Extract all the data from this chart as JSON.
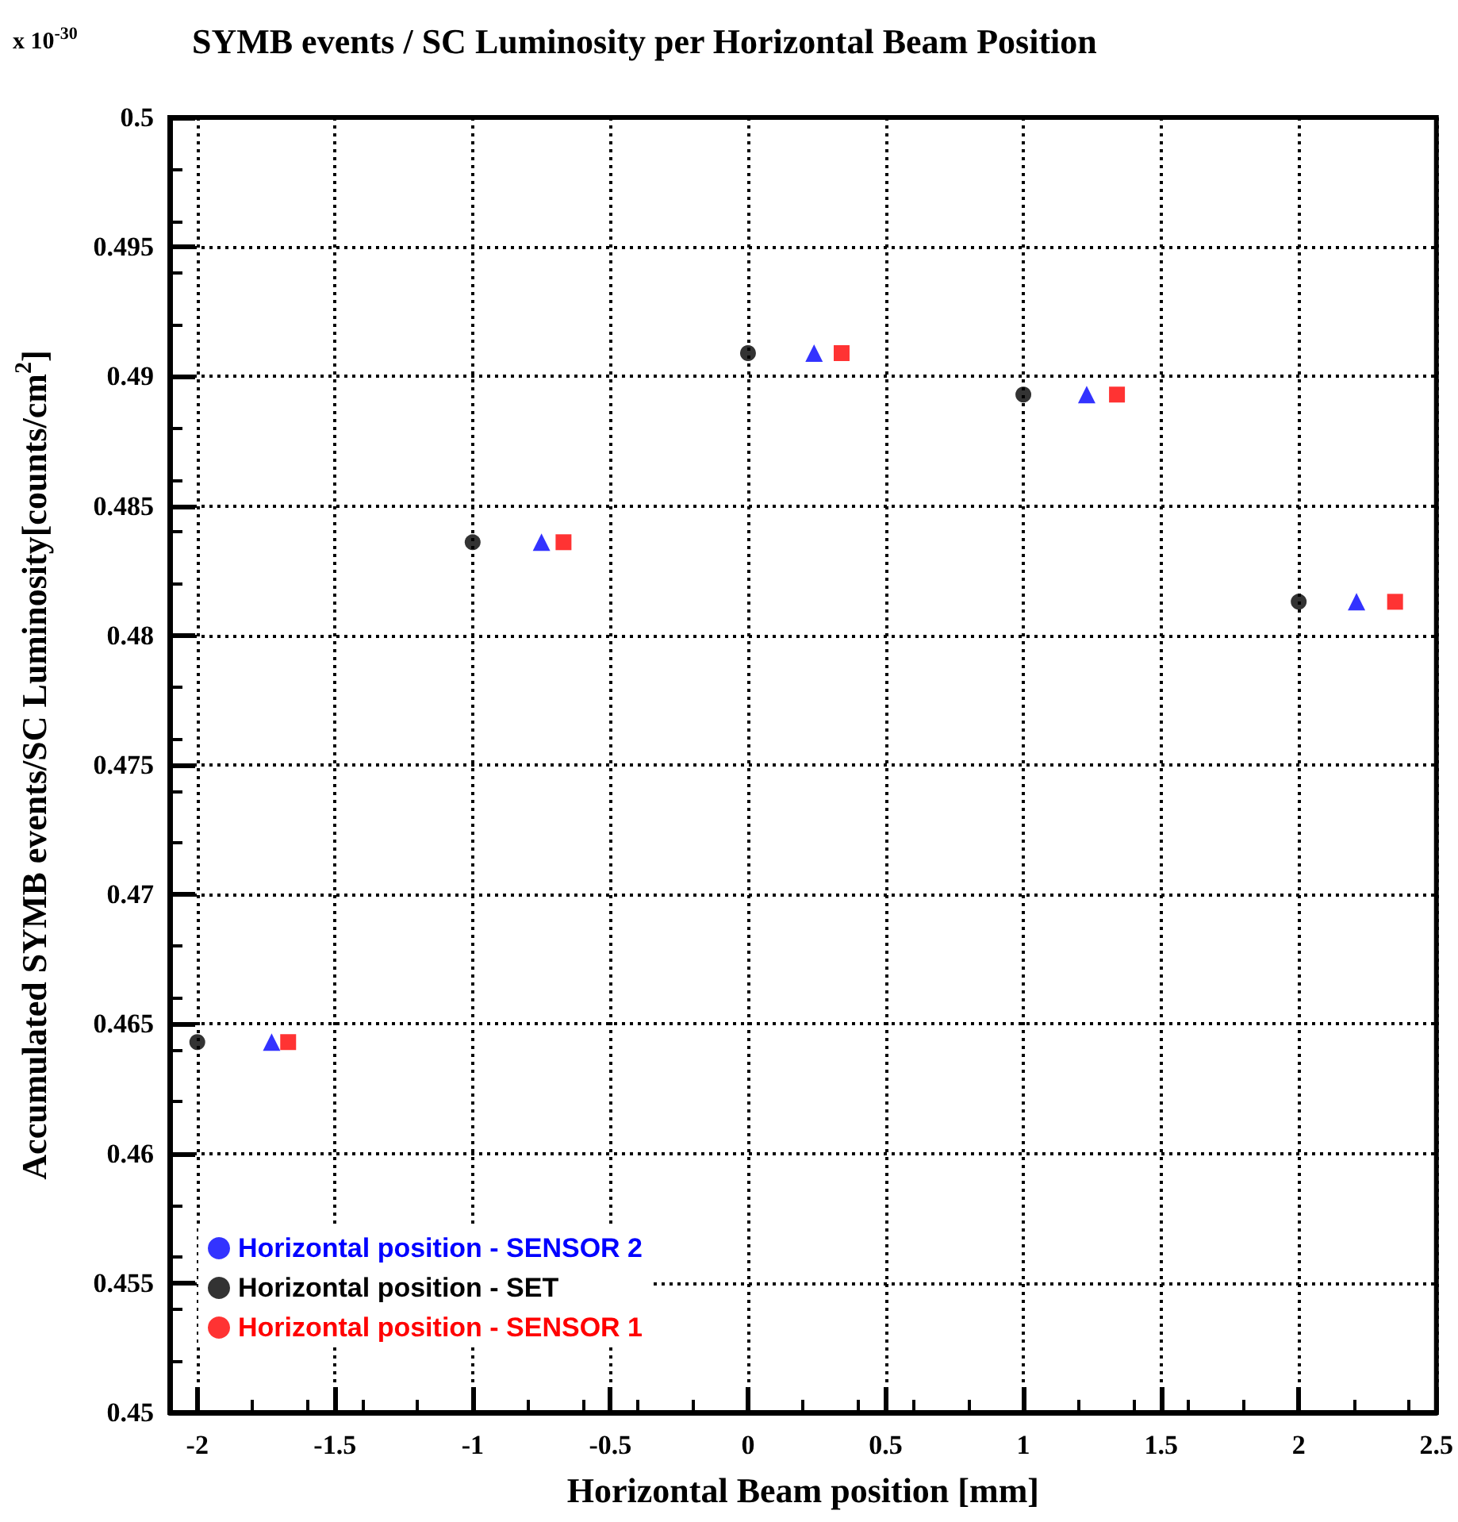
{
  "chart_data": {
    "type": "scatter",
    "title": "SYMB events / SC Luminosity per Horizontal Beam Position",
    "annotations": [
      "x 10$^{-30}$"
    ],
    "xlabel": "Horizontal Beam position [mm]",
    "ylabel": "Accumulated SYMB events/SC Luminosity[counts/cm$^{2}$]",
    "series": [
      {
        "name": "Horizontal position - SENSOR 2",
        "color": "#0000ff",
        "marker": "triangle",
        "x": [
          -1.73,
          -0.75,
          0.24,
          1.23,
          2.21
        ],
        "values": [
          0.4643,
          0.4836,
          0.4909,
          0.4893,
          0.4813
        ]
      },
      {
        "name": "Horizontal position - SET",
        "color": "#000000",
        "marker": "circle",
        "x": [
          -2,
          -1,
          0,
          1,
          2
        ],
        "values": [
          0.4643,
          0.4836,
          0.4909,
          0.4893,
          0.4813
        ]
      },
      {
        "name": "Horizontal position - SENSOR 1",
        "color": "#ff0000",
        "marker": "square",
        "x": [
          -1.67,
          -0.67,
          0.34,
          1.34,
          2.35
        ],
        "values": [
          0.4643,
          0.4836,
          0.4909,
          0.4893,
          0.4813
        ]
      }
    ],
    "xlim": [
      -2.1,
      2.5
    ],
    "xticks": [
      -2,
      -1.5,
      -1,
      -0.5,
      0,
      0.5,
      1,
      1.5,
      2,
      2.5
    ],
    "ylim": [
      0.45,
      0.5
    ],
    "yticks": [
      0.45,
      0.455,
      0.46,
      0.465,
      0.47,
      0.475,
      0.48,
      0.485,
      0.49,
      0.495,
      0.5
    ],
    "grid": true,
    "legend": "bottom left"
  }
}
